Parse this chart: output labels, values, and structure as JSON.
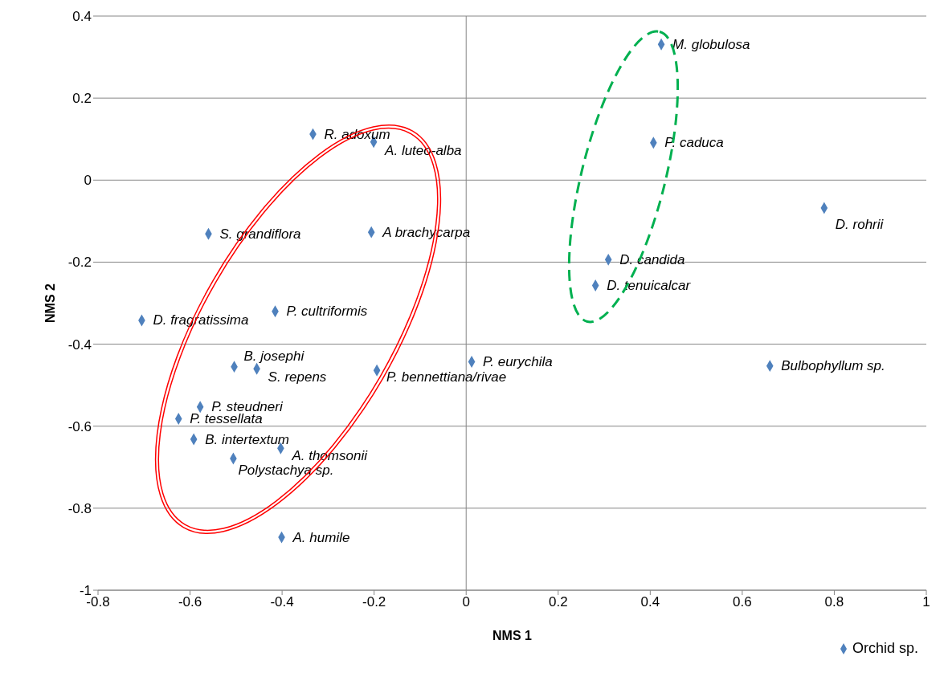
{
  "chart_data": {
    "type": "scatter",
    "xlabel": "NMS 1",
    "ylabel": "NMS 2",
    "xlim": [
      -0.8,
      1
    ],
    "xticks": [
      -0.8,
      -0.6,
      -0.4,
      -0.2,
      0,
      0.2,
      0.4,
      0.6,
      0.8,
      1
    ],
    "ylim": [
      -1,
      0.4
    ],
    "yticks": [
      -1,
      -0.8,
      -0.6,
      -0.4,
      -0.2,
      0,
      0.2,
      0.4
    ],
    "grid": "y",
    "legend": "bottom right",
    "marker": "diamond",
    "ref_lines": [
      {
        "axis": "x",
        "value": 0,
        "color": "#868686"
      }
    ],
    "series": [
      {
        "name": "Orchid sp.",
        "color": "#4f81bd",
        "x": [
          0.424,
          0.407,
          0.778,
          0.309,
          0.281,
          0.66,
          0.012,
          -0.333,
          -0.201,
          -0.56,
          -0.206,
          -0.705,
          -0.415,
          -0.504,
          -0.455,
          -0.194,
          -0.578,
          -0.625,
          -0.592,
          -0.403,
          -0.506,
          -0.401
        ],
        "values": [
          0.331,
          0.091,
          -0.068,
          -0.194,
          -0.257,
          -0.453,
          -0.443,
          0.112,
          0.093,
          -0.131,
          -0.127,
          -0.342,
          -0.32,
          -0.455,
          -0.46,
          -0.464,
          -0.553,
          -0.582,
          -0.632,
          -0.654,
          -0.679,
          -0.871
        ]
      }
    ],
    "annotations": [
      {
        "text": "M. globulosa",
        "x": 0.424,
        "y": 0.331
      },
      {
        "text": "P. caduca",
        "x": 0.407,
        "y": 0.091
      },
      {
        "text": "D. rohrii",
        "x": 0.778,
        "y": -0.068
      },
      {
        "text": "D. candida",
        "x": 0.309,
        "y": -0.194
      },
      {
        "text": "D. tenuicalcar",
        "x": 0.281,
        "y": -0.257
      },
      {
        "text": "Bulbophyllum sp.",
        "x": 0.66,
        "y": -0.453
      },
      {
        "text": "P. eurychila",
        "x": 0.012,
        "y": -0.443
      },
      {
        "text": "R. adoxum",
        "x": -0.333,
        "y": 0.112
      },
      {
        "text": "A. luteo-alba",
        "x": -0.201,
        "y": 0.093
      },
      {
        "text": "S. grandiflora",
        "x": -0.56,
        "y": -0.131
      },
      {
        "text": "A brachycarpa",
        "x": -0.206,
        "y": -0.127
      },
      {
        "text": "D. fragratissima",
        "x": -0.705,
        "y": -0.342
      },
      {
        "text": "P. cultriformis",
        "x": -0.415,
        "y": -0.32
      },
      {
        "text": "B. josephi",
        "x": -0.504,
        "y": -0.455
      },
      {
        "text": "S. repens",
        "x": -0.455,
        "y": -0.46
      },
      {
        "text": "P. bennettiana/rivae",
        "x": -0.194,
        "y": -0.464
      },
      {
        "text": "P. steudneri",
        "x": -0.578,
        "y": -0.553
      },
      {
        "text": "P. tessellata",
        "x": -0.625,
        "y": -0.582
      },
      {
        "text": "B. intertextum",
        "x": -0.592,
        "y": -0.632
      },
      {
        "text": "A. thomsonii",
        "x": -0.403,
        "y": -0.654
      },
      {
        "text": "Polystachya sp.",
        "x": -0.506,
        "y": -0.679
      },
      {
        "text": "A. humile",
        "x": -0.401,
        "y": -0.871
      }
    ]
  }
}
